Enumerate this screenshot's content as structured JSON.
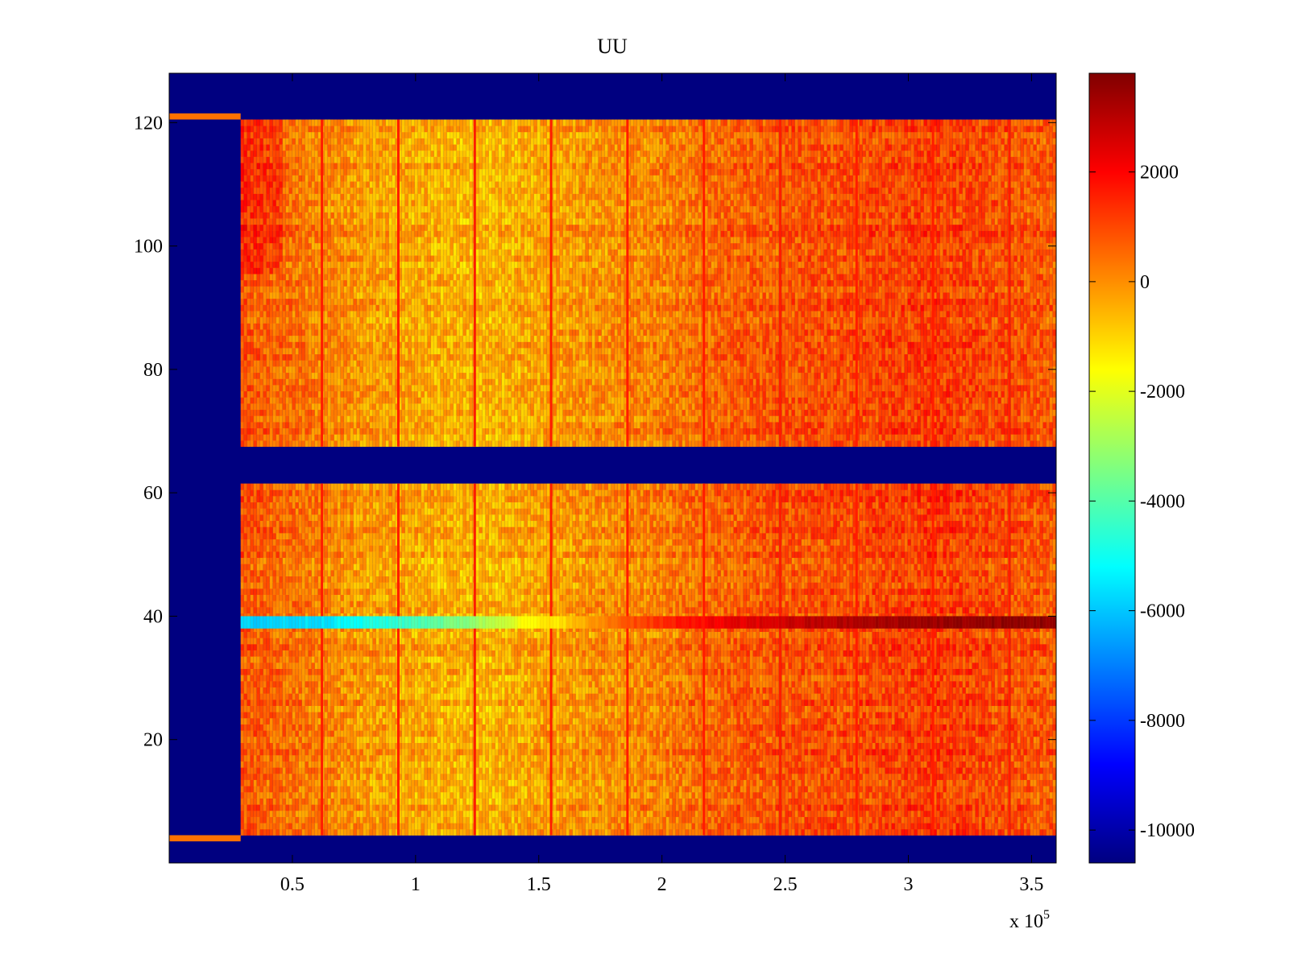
{
  "chart_data": {
    "type": "heatmap",
    "title": "UU",
    "xlabel": "",
    "ylabel": "",
    "x_multiplier_label": "x 10",
    "x_multiplier_exponent": "5",
    "xlim": [
      0,
      3.6
    ],
    "ylim": [
      0,
      128
    ],
    "x_ticks": [
      {
        "value": 0.5,
        "label": "0.5"
      },
      {
        "value": 1,
        "label": "1"
      },
      {
        "value": 1.5,
        "label": "1.5"
      },
      {
        "value": 2,
        "label": "2"
      },
      {
        "value": 2.5,
        "label": "2.5"
      },
      {
        "value": 3,
        "label": "3"
      },
      {
        "value": 3.5,
        "label": "3.5"
      }
    ],
    "y_ticks": [
      {
        "value": 20,
        "label": "20"
      },
      {
        "value": 40,
        "label": "40"
      },
      {
        "value": 60,
        "label": "60"
      },
      {
        "value": 80,
        "label": "80"
      },
      {
        "value": 100,
        "label": "100"
      },
      {
        "value": 120,
        "label": "120"
      }
    ],
    "colorbar": {
      "colormap": "jet",
      "clim": [
        -10600,
        3800
      ],
      "ticks": [
        {
          "value": 2000,
          "label": "2000"
        },
        {
          "value": 0,
          "label": "0"
        },
        {
          "value": -2000,
          "label": "-2000"
        },
        {
          "value": -4000,
          "label": "-4000"
        },
        {
          "value": -6000,
          "label": "-6000"
        },
        {
          "value": -8000,
          "label": "-8000"
        },
        {
          "value": -10000,
          "label": "-10000"
        }
      ]
    },
    "background_value": -10600,
    "data_region": {
      "x_start": 0.29,
      "x_end": 3.6,
      "y_bands": [
        [
          4.5,
          61.5
        ],
        [
          67.5,
          120.5
        ]
      ],
      "base_value": 200
    },
    "empty_row_markers": [
      {
        "y": 4,
        "x_start": 0,
        "x_end": 0.29,
        "value": 400
      },
      {
        "y": 121,
        "x_start": 0,
        "x_end": 0.29,
        "value": 400
      }
    ],
    "vertical_stripe_x": [
      0.62,
      0.93,
      1.24,
      1.55,
      1.86,
      2.17,
      2.48,
      2.79,
      3.1,
      3.41
    ],
    "stripe_value": 1600,
    "highlight_row": {
      "y": 39,
      "thickness": 2,
      "profile": [
        {
          "x": 0.29,
          "value": -5900
        },
        {
          "x": 0.6,
          "value": -5600
        },
        {
          "x": 0.9,
          "value": -4600
        },
        {
          "x": 1.2,
          "value": -3300
        },
        {
          "x": 1.4,
          "value": -1900
        },
        {
          "x": 1.55,
          "value": -1300
        },
        {
          "x": 1.7,
          "value": -300
        },
        {
          "x": 1.85,
          "value": 900
        },
        {
          "x": 2.2,
          "value": 2100
        },
        {
          "x": 2.6,
          "value": 2900
        },
        {
          "x": 3.0,
          "value": 3400
        },
        {
          "x": 3.6,
          "value": 3600
        }
      ]
    },
    "column_trend": [
      {
        "x": 0.29,
        "value": 800
      },
      {
        "x": 0.5,
        "value": 400
      },
      {
        "x": 0.8,
        "value": -200
      },
      {
        "x": 1.1,
        "value": -500
      },
      {
        "x": 1.3,
        "value": -600
      },
      {
        "x": 1.5,
        "value": -300
      },
      {
        "x": 1.8,
        "value": 0
      },
      {
        "x": 2.0,
        "value": 200
      },
      {
        "x": 2.3,
        "value": 700
      },
      {
        "x": 2.7,
        "value": 900
      },
      {
        "x": 3.1,
        "value": 1200
      },
      {
        "x": 3.6,
        "value": 700
      }
    ]
  }
}
